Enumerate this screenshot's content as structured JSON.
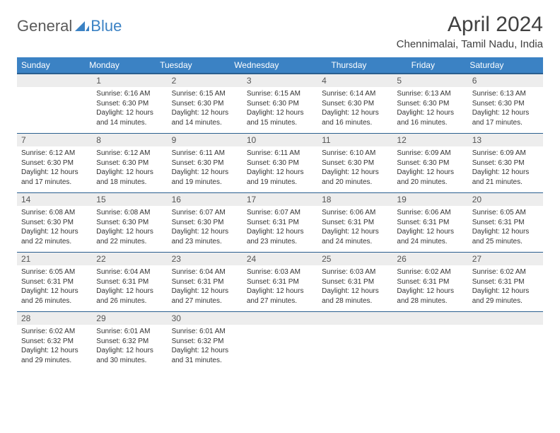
{
  "logo": {
    "text1": "General",
    "text2": "Blue"
  },
  "title": "April 2024",
  "location": "Chennimalai, Tamil Nadu, India",
  "colors": {
    "header_bg": "#3b82c4",
    "header_text": "#ffffff",
    "daynum_bg": "#ededed",
    "daynum_text": "#555555",
    "border": "#2a5f8f",
    "body_text": "#333333",
    "logo_gray": "#5a5a5a",
    "logo_blue": "#3b82c4"
  },
  "day_headers": [
    "Sunday",
    "Monday",
    "Tuesday",
    "Wednesday",
    "Thursday",
    "Friday",
    "Saturday"
  ],
  "weeks": [
    [
      {
        "num": "",
        "sunrise": "",
        "sunset": "",
        "daylight": ""
      },
      {
        "num": "1",
        "sunrise": "6:16 AM",
        "sunset": "6:30 PM",
        "daylight": "12 hours and 14 minutes."
      },
      {
        "num": "2",
        "sunrise": "6:15 AM",
        "sunset": "6:30 PM",
        "daylight": "12 hours and 14 minutes."
      },
      {
        "num": "3",
        "sunrise": "6:15 AM",
        "sunset": "6:30 PM",
        "daylight": "12 hours and 15 minutes."
      },
      {
        "num": "4",
        "sunrise": "6:14 AM",
        "sunset": "6:30 PM",
        "daylight": "12 hours and 16 minutes."
      },
      {
        "num": "5",
        "sunrise": "6:13 AM",
        "sunset": "6:30 PM",
        "daylight": "12 hours and 16 minutes."
      },
      {
        "num": "6",
        "sunrise": "6:13 AM",
        "sunset": "6:30 PM",
        "daylight": "12 hours and 17 minutes."
      }
    ],
    [
      {
        "num": "7",
        "sunrise": "6:12 AM",
        "sunset": "6:30 PM",
        "daylight": "12 hours and 17 minutes."
      },
      {
        "num": "8",
        "sunrise": "6:12 AM",
        "sunset": "6:30 PM",
        "daylight": "12 hours and 18 minutes."
      },
      {
        "num": "9",
        "sunrise": "6:11 AM",
        "sunset": "6:30 PM",
        "daylight": "12 hours and 19 minutes."
      },
      {
        "num": "10",
        "sunrise": "6:11 AM",
        "sunset": "6:30 PM",
        "daylight": "12 hours and 19 minutes."
      },
      {
        "num": "11",
        "sunrise": "6:10 AM",
        "sunset": "6:30 PM",
        "daylight": "12 hours and 20 minutes."
      },
      {
        "num": "12",
        "sunrise": "6:09 AM",
        "sunset": "6:30 PM",
        "daylight": "12 hours and 20 minutes."
      },
      {
        "num": "13",
        "sunrise": "6:09 AM",
        "sunset": "6:30 PM",
        "daylight": "12 hours and 21 minutes."
      }
    ],
    [
      {
        "num": "14",
        "sunrise": "6:08 AM",
        "sunset": "6:30 PM",
        "daylight": "12 hours and 22 minutes."
      },
      {
        "num": "15",
        "sunrise": "6:08 AM",
        "sunset": "6:30 PM",
        "daylight": "12 hours and 22 minutes."
      },
      {
        "num": "16",
        "sunrise": "6:07 AM",
        "sunset": "6:30 PM",
        "daylight": "12 hours and 23 minutes."
      },
      {
        "num": "17",
        "sunrise": "6:07 AM",
        "sunset": "6:31 PM",
        "daylight": "12 hours and 23 minutes."
      },
      {
        "num": "18",
        "sunrise": "6:06 AM",
        "sunset": "6:31 PM",
        "daylight": "12 hours and 24 minutes."
      },
      {
        "num": "19",
        "sunrise": "6:06 AM",
        "sunset": "6:31 PM",
        "daylight": "12 hours and 24 minutes."
      },
      {
        "num": "20",
        "sunrise": "6:05 AM",
        "sunset": "6:31 PM",
        "daylight": "12 hours and 25 minutes."
      }
    ],
    [
      {
        "num": "21",
        "sunrise": "6:05 AM",
        "sunset": "6:31 PM",
        "daylight": "12 hours and 26 minutes."
      },
      {
        "num": "22",
        "sunrise": "6:04 AM",
        "sunset": "6:31 PM",
        "daylight": "12 hours and 26 minutes."
      },
      {
        "num": "23",
        "sunrise": "6:04 AM",
        "sunset": "6:31 PM",
        "daylight": "12 hours and 27 minutes."
      },
      {
        "num": "24",
        "sunrise": "6:03 AM",
        "sunset": "6:31 PM",
        "daylight": "12 hours and 27 minutes."
      },
      {
        "num": "25",
        "sunrise": "6:03 AM",
        "sunset": "6:31 PM",
        "daylight": "12 hours and 28 minutes."
      },
      {
        "num": "26",
        "sunrise": "6:02 AM",
        "sunset": "6:31 PM",
        "daylight": "12 hours and 28 minutes."
      },
      {
        "num": "27",
        "sunrise": "6:02 AM",
        "sunset": "6:31 PM",
        "daylight": "12 hours and 29 minutes."
      }
    ],
    [
      {
        "num": "28",
        "sunrise": "6:02 AM",
        "sunset": "6:32 PM",
        "daylight": "12 hours and 29 minutes."
      },
      {
        "num": "29",
        "sunrise": "6:01 AM",
        "sunset": "6:32 PM",
        "daylight": "12 hours and 30 minutes."
      },
      {
        "num": "30",
        "sunrise": "6:01 AM",
        "sunset": "6:32 PM",
        "daylight": "12 hours and 31 minutes."
      },
      {
        "num": "",
        "sunrise": "",
        "sunset": "",
        "daylight": ""
      },
      {
        "num": "",
        "sunrise": "",
        "sunset": "",
        "daylight": ""
      },
      {
        "num": "",
        "sunrise": "",
        "sunset": "",
        "daylight": ""
      },
      {
        "num": "",
        "sunrise": "",
        "sunset": "",
        "daylight": ""
      }
    ]
  ]
}
